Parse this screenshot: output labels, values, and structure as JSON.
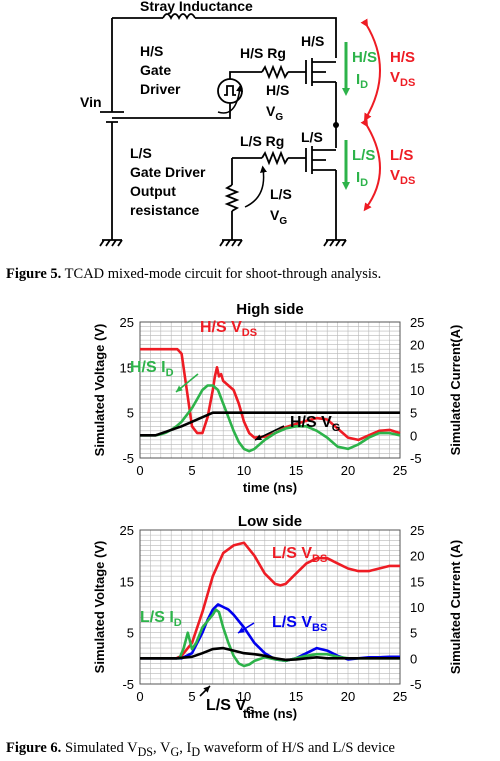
{
  "figure5": {
    "caption_label": "Figure 5.",
    "caption_text": " TCAD mixed-mode circuit for shoot-through analysis.",
    "labels": {
      "stray": "Stray Inductance",
      "vin": "Vin",
      "hs_driver_1": "H/S",
      "hs_driver_2": "Gate",
      "hs_driver_3": "Driver",
      "hs_rg": "H/S Rg",
      "hs_fet": "H/S",
      "hs_vg_1": "H/S",
      "hs_vg_2": "V",
      "hs_vg_sub": "G",
      "hs_id_1": "H/S",
      "hs_id_2": "I",
      "hs_id_sub": "D",
      "hs_vds_1": "H/S",
      "hs_vds_2": "V",
      "hs_vds_sub": "DS",
      "ls_driver_1": "L/S",
      "ls_driver_2": "Gate Driver",
      "ls_driver_3": "Output",
      "ls_driver_4": "resistance",
      "ls_rg": "L/S Rg",
      "ls_fet": "L/S",
      "ls_vg_1": "L/S",
      "ls_vg_2": "V",
      "ls_vg_sub": "G",
      "ls_id_1": "L/S",
      "ls_id_2": "I",
      "ls_id_sub": "D",
      "ls_vds_1": "L/S",
      "ls_vds_2": "V",
      "ls_vds_sub": "DS"
    },
    "colors": {
      "id_arrow": "#2db34a",
      "vds_arrow": "#ee1c24",
      "wire": "#000000"
    }
  },
  "chart_data": [
    {
      "type": "line",
      "title": "High side",
      "xlabel": "time (ns)",
      "ylabel": "Simulated Voltage (V)",
      "y2label": "Simulated Current(A)",
      "xlim": [
        0,
        25
      ],
      "ylim": [
        -5,
        25
      ],
      "y2lim": [
        -5,
        25
      ],
      "xticks": [
        "0",
        "5",
        "10",
        "15",
        "20",
        "25"
      ],
      "yticks": [
        "-5",
        "5",
        "15",
        "25"
      ],
      "y2ticks": [
        "-5",
        "0",
        "5",
        "10",
        "15",
        "20",
        "25"
      ],
      "grid": true,
      "series": [
        {
          "label_main": "H/S V",
          "label_sub": "DS",
          "color": "#ee1c24",
          "axis": "left",
          "x": [
            0,
            3,
            3.6,
            4,
            4.5,
            5,
            5.5,
            6,
            6.5,
            7,
            7.2,
            7.4,
            7.6,
            7.8,
            8,
            8.5,
            9,
            9.5,
            10,
            10.5,
            11,
            12,
            13,
            14,
            15,
            16,
            17,
            18,
            19,
            20,
            21,
            22,
            23,
            24,
            25
          ],
          "y": [
            19,
            19,
            19,
            18,
            10,
            2,
            0.5,
            0.5,
            4,
            10,
            13,
            15,
            13,
            13.5,
            12,
            11,
            10,
            7,
            3,
            0.5,
            -0.5,
            -0.3,
            0.5,
            1.8,
            2.5,
            3.2,
            3.8,
            3.5,
            1.5,
            -0.5,
            -1,
            0,
            1,
            1.2,
            0.5
          ]
        },
        {
          "label_main": "H/S I",
          "label_sub": "D",
          "color": "#2db34a",
          "axis": "right",
          "x": [
            0,
            1.5,
            2,
            2.5,
            3,
            3.5,
            4,
            4.5,
            5,
            5.5,
            6,
            6.5,
            7,
            7.5,
            8,
            8.5,
            9,
            9.5,
            10,
            10.5,
            11,
            11.5,
            12,
            13,
            14,
            15,
            16,
            17,
            18,
            19,
            20,
            21,
            22,
            23,
            24,
            25
          ],
          "y": [
            0,
            0,
            0.2,
            0.6,
            1.2,
            2,
            3,
            4.5,
            6,
            8,
            10,
            11,
            11,
            10,
            7,
            4,
            1,
            -1.5,
            -3,
            -3.5,
            -3,
            -2,
            -1,
            0.5,
            1.5,
            2,
            2,
            1,
            -0.5,
            -2.5,
            -3,
            -2,
            -0.5,
            0.5,
            0.5,
            0
          ]
        },
        {
          "label_main": "H/S V",
          "label_sub": "G",
          "color": "#000000",
          "axis": "left",
          "x": [
            0,
            1.5,
            4,
            7,
            25
          ],
          "y": [
            0,
            0,
            2,
            5,
            5
          ]
        }
      ]
    },
    {
      "type": "line",
      "title": "Low side",
      "xlabel": "time (ns)",
      "ylabel": "Simulated Voltage (V)",
      "y2label": "Simulated  Current (A)",
      "xlim": [
        0,
        25
      ],
      "ylim": [
        -5,
        25
      ],
      "y2lim": [
        -5,
        25
      ],
      "xticks": [
        "0",
        "5",
        "10",
        "15",
        "20",
        "25"
      ],
      "yticks": [
        "-5",
        "5",
        "15",
        "25"
      ],
      "y2ticks": [
        "-5",
        "0",
        "5",
        "10",
        "15",
        "20",
        "25"
      ],
      "grid": true,
      "series": [
        {
          "label_main": "L/S V",
          "label_sub": "DS",
          "color": "#ee1c24",
          "axis": "left",
          "x": [
            0,
            3.5,
            4,
            5,
            6,
            7,
            8,
            9,
            10,
            11,
            12,
            13,
            13.5,
            14,
            15,
            16,
            17,
            18,
            19,
            20,
            21,
            22,
            23,
            24,
            25
          ],
          "y": [
            0,
            0,
            0.5,
            3,
            9,
            16,
            20.5,
            22,
            22.5,
            20,
            16.5,
            14.5,
            14.2,
            14.5,
            16.5,
            18.5,
            19.5,
            19.5,
            18.5,
            17.5,
            17,
            17,
            17.5,
            18,
            18
          ]
        },
        {
          "label_main": "L/S V",
          "label_sub": "BS",
          "color": "#0000ee",
          "axis": "left",
          "x": [
            0,
            4,
            5,
            6,
            6.5,
            7,
            7.5,
            8,
            8.5,
            9,
            10,
            11,
            12,
            13,
            14,
            15,
            16,
            17,
            18,
            19,
            20,
            21,
            22,
            23,
            24,
            25
          ],
          "y": [
            0,
            0,
            1,
            5,
            7.5,
            9.5,
            10.5,
            10,
            9.5,
            8.5,
            6,
            3,
            1,
            -0.2,
            -0.5,
            0,
            1,
            2,
            1.5,
            0.5,
            -0.2,
            0,
            0.2,
            0.2,
            0.3,
            0.3
          ]
        },
        {
          "label_main": "L/S I",
          "label_sub": "D",
          "color": "#2db34a",
          "axis": "right",
          "x": [
            0,
            3.8,
            4.2,
            4.6,
            5,
            5.4,
            6,
            6.6,
            7,
            7.3,
            7.6,
            8,
            8.5,
            9,
            9.5,
            10,
            10.5,
            11,
            12,
            13,
            14,
            15,
            16,
            17,
            18,
            19,
            20,
            22,
            25
          ],
          "y": [
            0,
            0,
            2,
            5,
            1.8,
            3,
            6,
            7.5,
            8.5,
            9.5,
            9,
            6,
            3,
            0.5,
            -1,
            -1.5,
            -1.2,
            -0.5,
            0.2,
            -0.2,
            -0.5,
            0,
            0.5,
            0.8,
            0.8,
            0.3,
            0,
            0,
            0
          ]
        },
        {
          "label_main": "L/S V",
          "label_sub": "G",
          "color": "#000000",
          "axis": "left",
          "x": [
            0,
            3.5,
            5,
            6,
            7,
            8,
            9,
            10,
            11,
            12,
            13,
            14,
            15,
            16,
            17,
            18,
            20,
            25
          ],
          "y": [
            0,
            0,
            0.3,
            1,
            1.8,
            2,
            1.5,
            1,
            0.8,
            0.5,
            0,
            -0.3,
            -0.2,
            0,
            0.2,
            0,
            0,
            0
          ]
        }
      ]
    }
  ],
  "figure6": {
    "caption_label": "Figure 6.",
    "caption_text": " Simulated V",
    "caption_sub1": "DS",
    "caption_text2": ", V",
    "caption_sub2": "G",
    "caption_text3": ", I",
    "caption_sub3": "D",
    "caption_text4": " waveform of H/S and L/S device"
  }
}
